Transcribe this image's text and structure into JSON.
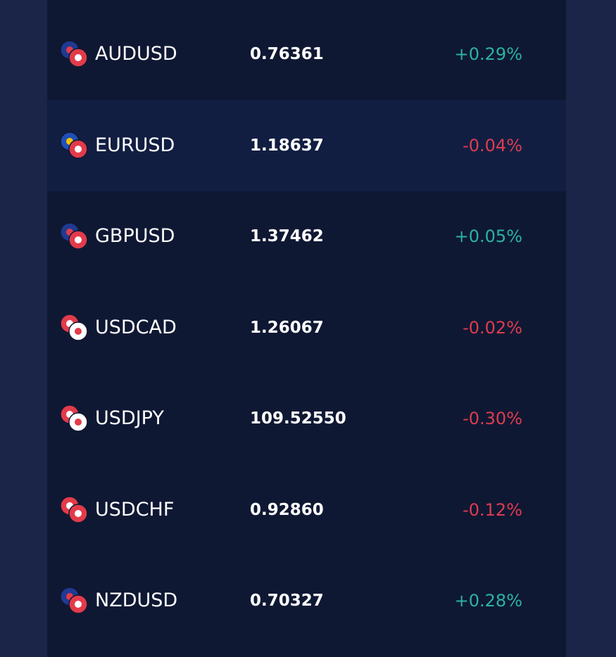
{
  "table": {
    "rows": [
      [
        "AUDUSD",
        "0.76361",
        "+0.29%"
      ],
      [
        "EURUSD",
        "1.18637",
        "-0.04%"
      ],
      [
        "GBPUSD",
        "1.37462",
        "+0.05%"
      ],
      [
        "USDCAD",
        "1.26067",
        "-0.02%"
      ],
      [
        "USDJPY",
        "109.52550",
        "-0.30%"
      ],
      [
        "USDCHF",
        "0.92860",
        "-0.12%"
      ],
      [
        "NZDUSD",
        "0.70327",
        "+0.28%"
      ]
    ]
  }
}
